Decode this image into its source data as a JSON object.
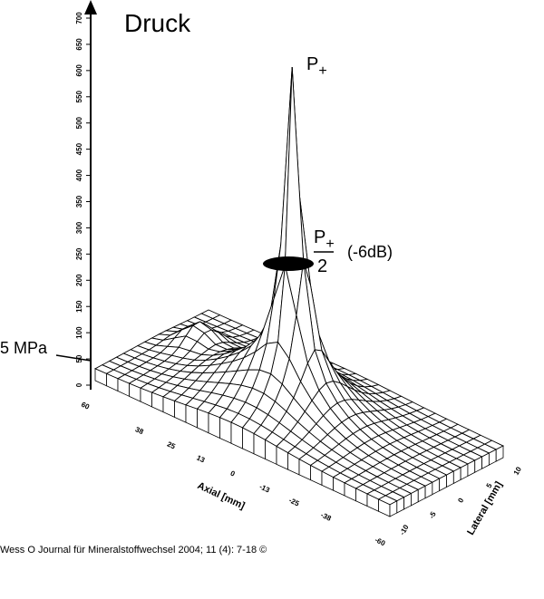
{
  "chart_data": {
    "type": "surface",
    "title": "Druck",
    "peak_label": {
      "base": "P",
      "sub": "+"
    },
    "half_label": {
      "base": "P",
      "sub": "+",
      "denominator": "2",
      "note": "(-6dB)"
    },
    "reference_label": "5 MPa",
    "zlim": [
      0,
      700
    ],
    "zticks": [
      0,
      50,
      100,
      150,
      200,
      250,
      300,
      350,
      400,
      450,
      500,
      550,
      600,
      650,
      700
    ],
    "xlabel": "Axial [mm]",
    "xlim": [
      60,
      -60
    ],
    "xticks": [
      60,
      38,
      25,
      13,
      0,
      -13,
      -25,
      -38,
      -60
    ],
    "ylabel": "Lateral [mm]",
    "ylim": [
      -10,
      10
    ],
    "yticks": [
      -10,
      -5,
      0,
      5,
      10
    ]
  },
  "footer": "Wess O Journal für Mineralstoffwechsel 2004; 11 (4): 7-18 ©"
}
